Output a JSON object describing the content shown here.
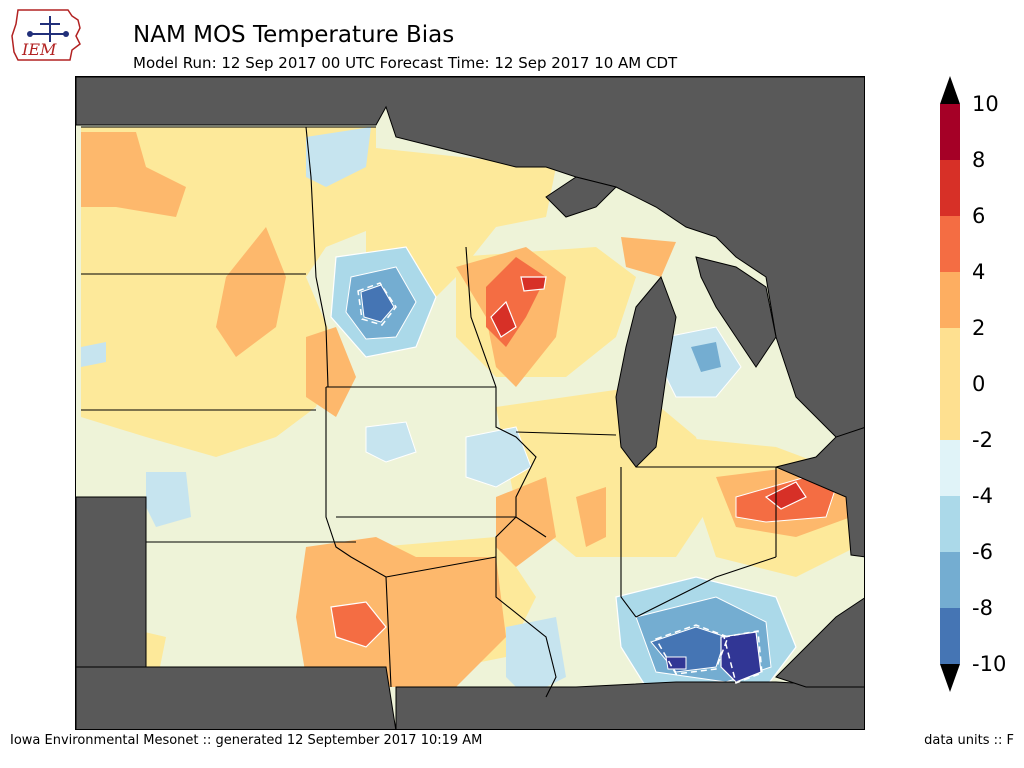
{
  "header": {
    "logo_text": "IEM",
    "title": "NAM MOS Temperature Bias",
    "subtitle": "Model Run: 12 Sep 2017 00 UTC Forecast Time: 12 Sep 2017 10 AM CDT"
  },
  "colorbar": {
    "ticks": [
      "10",
      "8",
      "6",
      "4",
      "2",
      "0",
      "-2",
      "-4",
      "-6",
      "-8",
      "-10"
    ],
    "colors": [
      "#a50026",
      "#d73027",
      "#f46d43",
      "#fdae61",
      "#fee090",
      "#ffffbf",
      "#e0f3f8",
      "#abd9e9",
      "#74add1",
      "#4575b4",
      "#313695"
    ]
  },
  "map": {
    "background_color": "#f0f5dc",
    "masked_color": "#595959"
  },
  "footer": {
    "left": "Iowa Environmental Mesonet :: generated 12 September 2017 10:19 AM",
    "right": "data units :: F"
  }
}
